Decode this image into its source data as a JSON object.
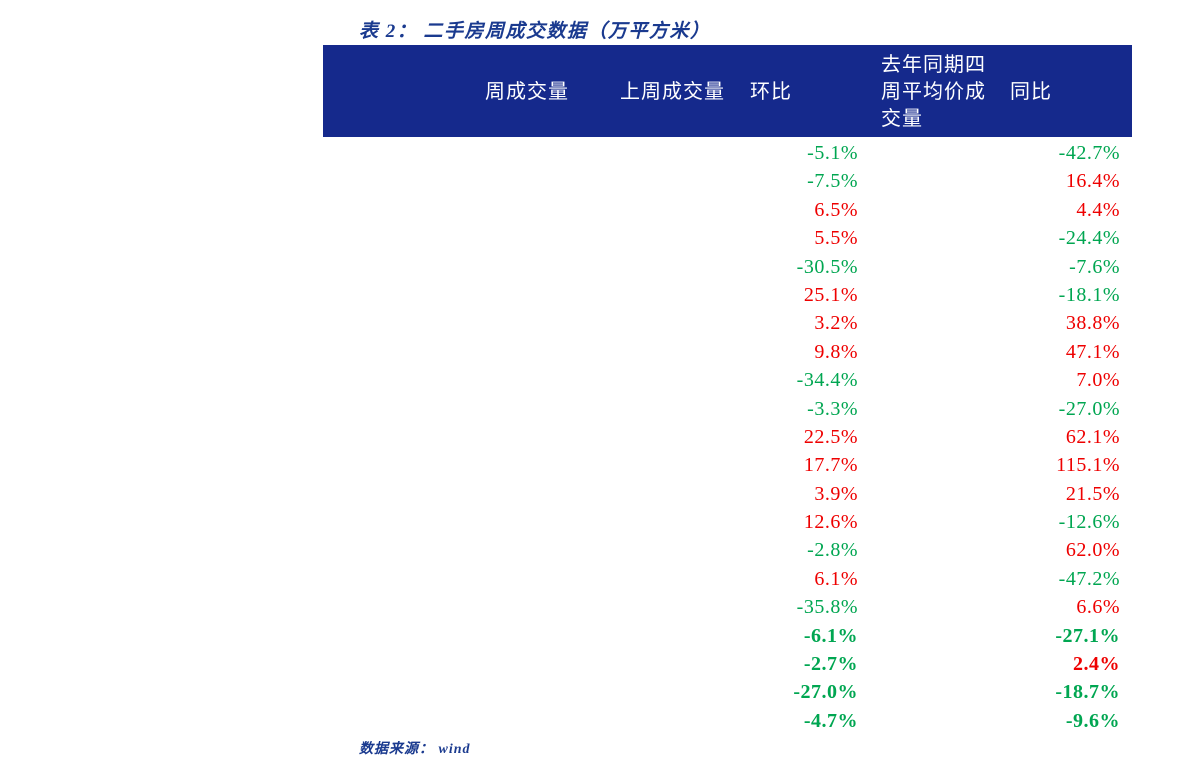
{
  "title": "表 2：  二手房周成交数据（万平方米）",
  "source_note": "数据来源：  wind",
  "colors": {
    "header_bg": "#15298c",
    "header_text": "#ffffff",
    "title_blue": "#1a3a8f",
    "positive_red": "#ee0000",
    "negative_green": "#00a651"
  },
  "table": {
    "columns": [
      {
        "label": "周成交量"
      },
      {
        "label": "上周成交量"
      },
      {
        "label": "环比"
      },
      {
        "label": "去年同期四周平均价成交量"
      },
      {
        "label": "同比"
      }
    ],
    "rows": [
      {
        "huanbi": "-5.1%",
        "tongbi": "-42.7%",
        "bold": false
      },
      {
        "huanbi": "-7.5%",
        "tongbi": "16.4%",
        "bold": false
      },
      {
        "huanbi": "6.5%",
        "tongbi": "4.4%",
        "bold": false
      },
      {
        "huanbi": "5.5%",
        "tongbi": "-24.4%",
        "bold": false
      },
      {
        "huanbi": "-30.5%",
        "tongbi": "-7.6%",
        "bold": false
      },
      {
        "huanbi": "25.1%",
        "tongbi": "-18.1%",
        "bold": false
      },
      {
        "huanbi": "3.2%",
        "tongbi": "38.8%",
        "bold": false
      },
      {
        "huanbi": "9.8%",
        "tongbi": "47.1%",
        "bold": false
      },
      {
        "huanbi": "-34.4%",
        "tongbi": "7.0%",
        "bold": false
      },
      {
        "huanbi": "-3.3%",
        "tongbi": "-27.0%",
        "bold": false
      },
      {
        "huanbi": "22.5%",
        "tongbi": "62.1%",
        "bold": false
      },
      {
        "huanbi": "17.7%",
        "tongbi": "115.1%",
        "bold": false
      },
      {
        "huanbi": "3.9%",
        "tongbi": "21.5%",
        "bold": false
      },
      {
        "huanbi": "12.6%",
        "tongbi": "-12.6%",
        "bold": false
      },
      {
        "huanbi": "-2.8%",
        "tongbi": "62.0%",
        "bold": false
      },
      {
        "huanbi": "6.1%",
        "tongbi": "-47.2%",
        "bold": false
      },
      {
        "huanbi": "-35.8%",
        "tongbi": "6.6%",
        "bold": false
      },
      {
        "huanbi": "-6.1%",
        "tongbi": "-27.1%",
        "bold": true
      },
      {
        "huanbi": "-2.7%",
        "tongbi": "2.4%",
        "bold": true
      },
      {
        "huanbi": "-27.0%",
        "tongbi": "-18.7%",
        "bold": true
      },
      {
        "huanbi": "-4.7%",
        "tongbi": "-9.6%",
        "bold": true
      }
    ]
  }
}
